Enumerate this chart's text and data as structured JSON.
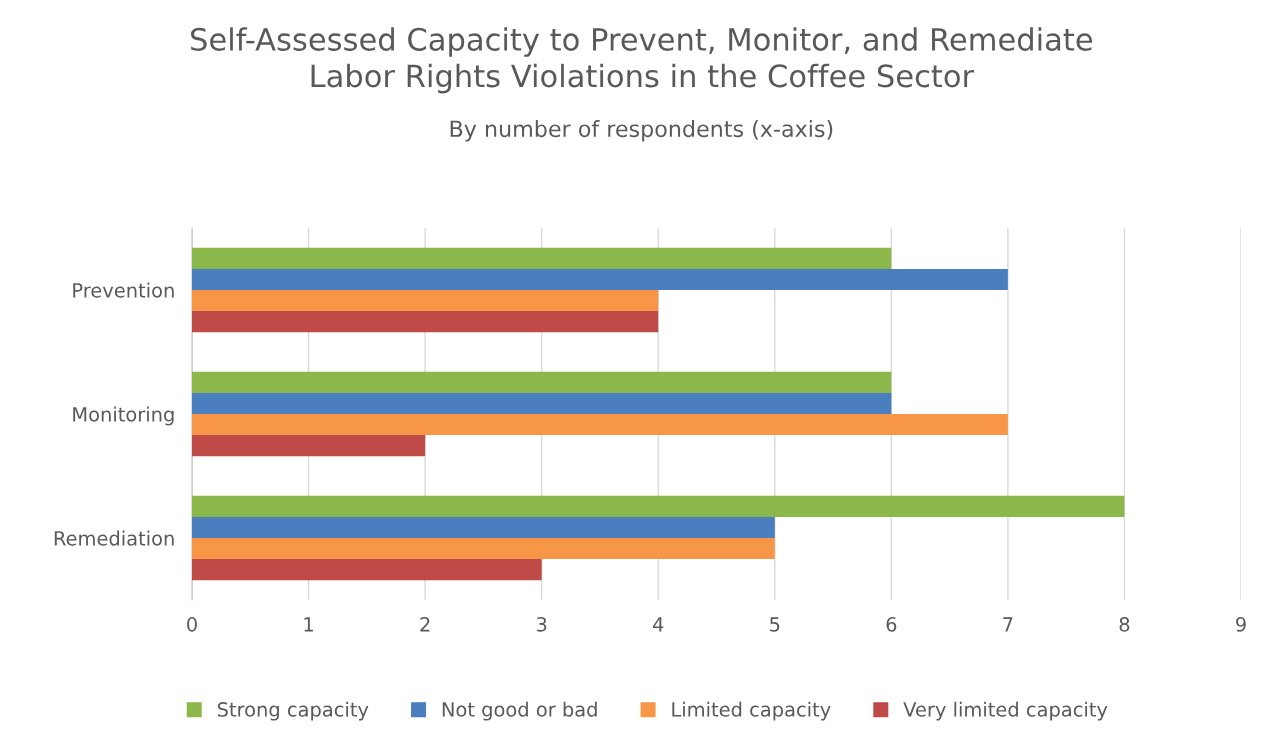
{
  "chart_data": {
    "type": "bar",
    "orientation": "horizontal",
    "title": "Self-Assessed Capacity to Prevent, Monitor, and Remediate\nLabor Rights Violations in the Coffee Sector",
    "subtitle": "By number of respondents (x-axis)",
    "categories": [
      "Prevention",
      "Monitoring",
      "Remediation"
    ],
    "series": [
      {
        "name": "Strong capacity",
        "color": "#8cb74a",
        "values": [
          6,
          6,
          8
        ]
      },
      {
        "name": "Not good or bad",
        "color": "#4a7ebf",
        "values": [
          7,
          6,
          5
        ]
      },
      {
        "name": "Limited capacity",
        "color": "#f79646",
        "values": [
          4,
          7,
          5
        ]
      },
      {
        "name": "Very limited capacity",
        "color": "#be4b48",
        "values": [
          4,
          2,
          3
        ]
      }
    ],
    "xlim": [
      0,
      9
    ],
    "xticks": [
      0,
      1,
      2,
      3,
      4,
      5,
      6,
      7,
      8,
      9
    ],
    "grid": "x",
    "legend": "bottom"
  }
}
